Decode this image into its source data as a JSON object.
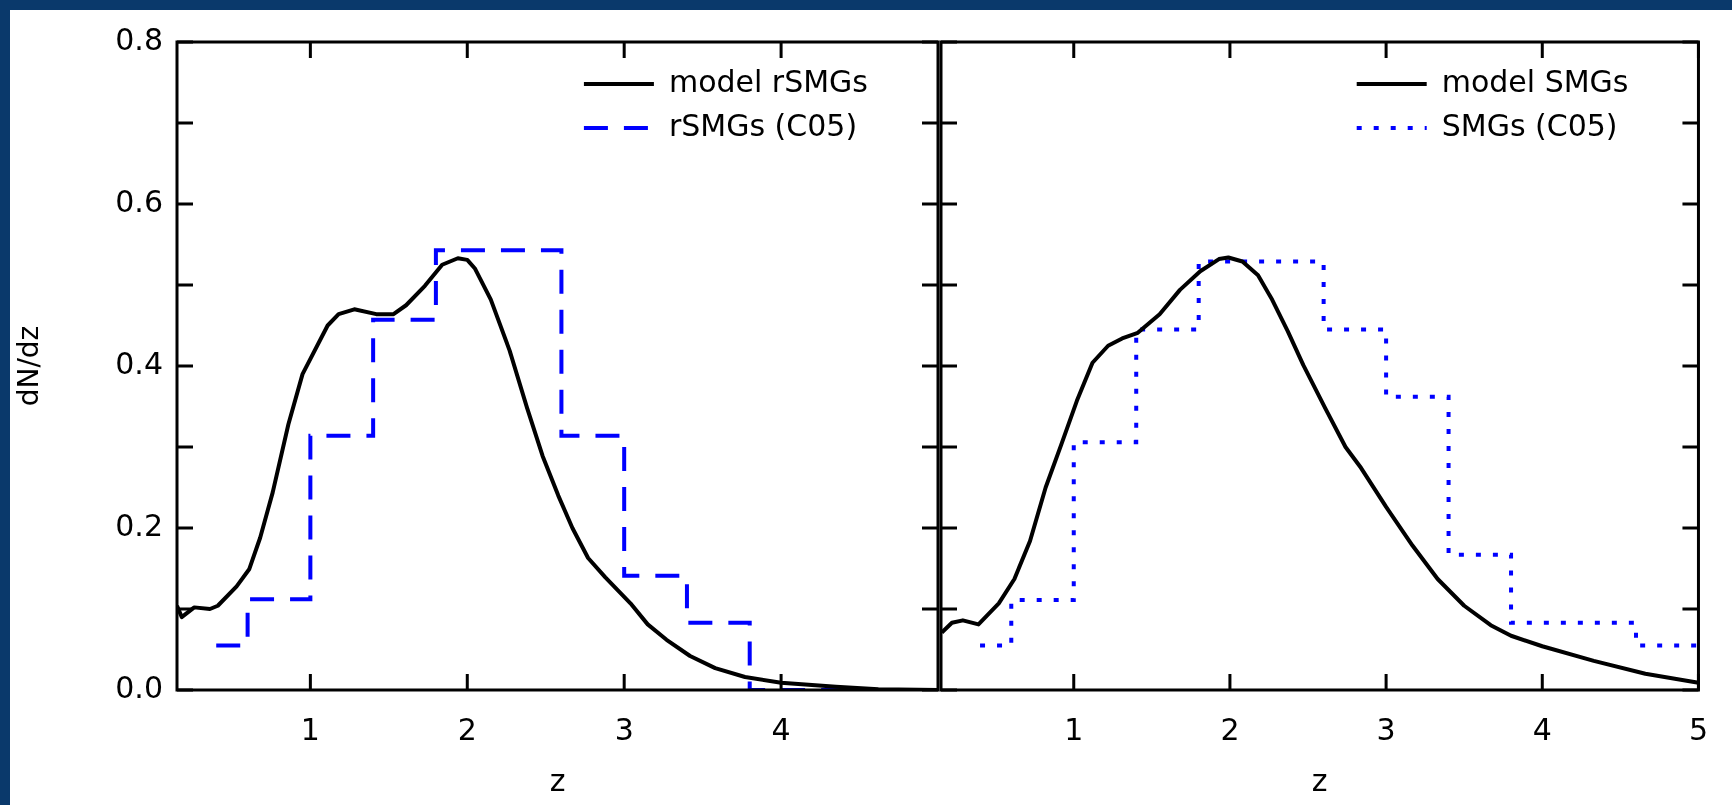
{
  "chart_data": [
    {
      "type": "line",
      "xlabel": "z",
      "ylabel": "dN/dz",
      "xlim": [
        0.15,
        5
      ],
      "ylim": [
        0,
        0.8
      ],
      "xticks": [
        1,
        2,
        3,
        4
      ],
      "yticks": [
        {
          "value": 0,
          "label": "0.0"
        },
        {
          "value": 0.1,
          "label": null
        },
        {
          "value": 0.2,
          "label": "0.2"
        },
        {
          "value": 0.3,
          "label": null
        },
        {
          "value": 0.4,
          "label": "0.4"
        },
        {
          "value": 0.5,
          "label": null
        },
        {
          "value": 0.6,
          "label": "0.6"
        },
        {
          "value": 0.7,
          "label": null
        },
        {
          "value": 0.8,
          "label": "0.8"
        }
      ],
      "legend": "top right",
      "series": [
        {
          "name": "model rSMGs",
          "type": "line",
          "color": "#000000",
          "line_style": "solid",
          "x": [
            0.15,
            0.18,
            0.26,
            0.36,
            0.41,
            0.53,
            0.61,
            0.68,
            0.76,
            0.86,
            0.95,
            1.11,
            1.18,
            1.28,
            1.42,
            1.53,
            1.61,
            1.73,
            1.84,
            1.94,
            2.0,
            2.05,
            2.15,
            2.27,
            2.38,
            2.48,
            2.58,
            2.67,
            2.77,
            2.88,
            3.04,
            3.15,
            3.27,
            3.42,
            3.58,
            3.77,
            4.0,
            4.35,
            4.62,
            5.0
          ],
          "values": [
            0.104,
            0.09,
            0.102,
            0.1,
            0.104,
            0.128,
            0.149,
            0.188,
            0.244,
            0.328,
            0.39,
            0.45,
            0.464,
            0.47,
            0.464,
            0.464,
            0.475,
            0.499,
            0.525,
            0.533,
            0.531,
            0.52,
            0.482,
            0.419,
            0.349,
            0.289,
            0.24,
            0.2,
            0.163,
            0.139,
            0.107,
            0.081,
            0.062,
            0.042,
            0.027,
            0.016,
            0.009,
            0.004,
            0.001,
            0
          ]
        },
        {
          "name": "rSMGs (C05)",
          "type": "histogram",
          "color": "#0000ff",
          "line_style": "dashed",
          "bins": [
            0.4,
            0.6,
            1.0,
            1.4,
            1.8,
            2.6,
            3.0,
            3.4,
            3.8,
            5.0
          ],
          "values": [
            0.055,
            0.112,
            0.314,
            0.457,
            0.543,
            0.314,
            0.141,
            0.083,
            0
          ]
        }
      ]
    },
    {
      "type": "line",
      "xlabel": "z",
      "xlim": [
        0.15,
        5
      ],
      "ylim": [
        0,
        0.8
      ],
      "tick_labels": "x",
      "xticks": [
        1,
        2,
        3,
        4,
        5
      ],
      "yticks": [
        0,
        0.1,
        0.2,
        0.3,
        0.4,
        0.5,
        0.6,
        0.7,
        0.8
      ],
      "legend": "top right",
      "series": [
        {
          "name": "model SMGs",
          "type": "line",
          "color": "#000000",
          "line_style": "solid",
          "x": [
            0.155,
            0.22,
            0.29,
            0.39,
            0.52,
            0.62,
            0.72,
            0.82,
            0.92,
            1.02,
            1.12,
            1.22,
            1.31,
            1.41,
            1.55,
            1.68,
            1.81,
            1.93,
            1.99,
            2.08,
            2.18,
            2.27,
            2.37,
            2.47,
            2.61,
            2.74,
            2.84,
            3.0,
            3.17,
            3.33,
            3.5,
            3.67,
            3.8,
            4.0,
            4.33,
            4.66,
            5.0
          ],
          "values": [
            0.071,
            0.083,
            0.086,
            0.081,
            0.107,
            0.137,
            0.184,
            0.25,
            0.303,
            0.357,
            0.404,
            0.425,
            0.434,
            0.441,
            0.464,
            0.494,
            0.517,
            0.532,
            0.534,
            0.529,
            0.512,
            0.482,
            0.443,
            0.401,
            0.348,
            0.3,
            0.274,
            0.226,
            0.178,
            0.137,
            0.104,
            0.08,
            0.067,
            0.054,
            0.036,
            0.02,
            0.009
          ]
        },
        {
          "name": "SMGs (C05)",
          "type": "histogram",
          "color": "#0000ff",
          "line_style": "dotted",
          "bins": [
            0.4,
            0.6,
            1.0,
            1.4,
            1.8,
            2.6,
            3.0,
            3.4,
            3.8,
            4.6,
            5.0
          ],
          "values": [
            0.055,
            0.111,
            0.306,
            0.445,
            0.529,
            0.445,
            0.362,
            0.167,
            0.083,
            0.055
          ]
        }
      ]
    }
  ]
}
